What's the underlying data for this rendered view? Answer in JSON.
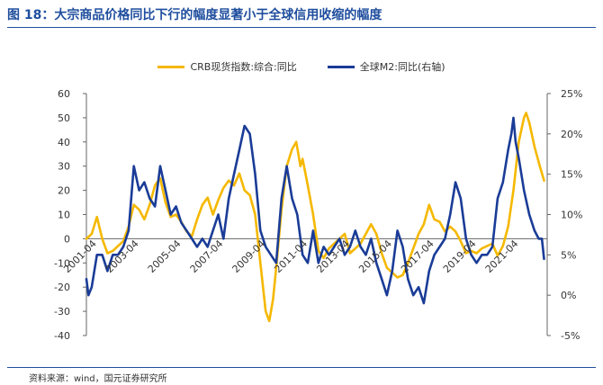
{
  "title": "图 18：大宗商品价格同比下行的幅度显著小于全球信用收缩的幅度",
  "source": "资料来源：wind，国元证券研究所",
  "colors": {
    "crb": "#f5b800",
    "m2": "#1a3c97",
    "title": "#1f4e9e"
  },
  "chart_data": {
    "type": "line",
    "x_tick_labels": [
      "2001-04",
      "2003-04",
      "2005-04",
      "2007-04",
      "2009-04",
      "2011-04",
      "2013-04",
      "2015-04",
      "2017-04",
      "2019-04",
      "2021-04"
    ],
    "x_range": [
      2000.75,
      2022.6
    ],
    "y_left": {
      "range": [
        -40,
        60
      ],
      "ticks": [
        60,
        50,
        40,
        30,
        20,
        10,
        0,
        -10,
        -20,
        -30,
        -40
      ],
      "tick_labels": [
        "60",
        "50",
        "40",
        "30",
        "20",
        "10",
        "0",
        "-10",
        "-20",
        "-30",
        "-40"
      ]
    },
    "y_right": {
      "range": [
        -5,
        25
      ],
      "ticks": [
        25,
        20,
        15,
        10,
        5,
        0,
        -5
      ],
      "tick_labels": [
        "25%",
        "20%",
        "15%",
        "10%",
        "5%",
        "0%",
        "-5%"
      ]
    },
    "series": [
      {
        "name": "CRB现货指数:综合:同比",
        "axis": "left",
        "color": "#f5b800",
        "points": [
          [
            2000.75,
            0
          ],
          [
            2001.0,
            2
          ],
          [
            2001.25,
            9
          ],
          [
            2001.5,
            0
          ],
          [
            2001.75,
            -6
          ],
          [
            2002.0,
            -5
          ],
          [
            2002.25,
            -3
          ],
          [
            2002.5,
            -1
          ],
          [
            2002.75,
            5
          ],
          [
            2003.0,
            14
          ],
          [
            2003.25,
            12
          ],
          [
            2003.5,
            8
          ],
          [
            2003.75,
            14
          ],
          [
            2004.0,
            22
          ],
          [
            2004.25,
            25
          ],
          [
            2004.5,
            15
          ],
          [
            2004.75,
            9
          ],
          [
            2005.0,
            10
          ],
          [
            2005.25,
            7
          ],
          [
            2005.5,
            3
          ],
          [
            2005.75,
            1
          ],
          [
            2006.0,
            8
          ],
          [
            2006.25,
            14
          ],
          [
            2006.5,
            17
          ],
          [
            2006.75,
            10
          ],
          [
            2007.0,
            16
          ],
          [
            2007.25,
            21
          ],
          [
            2007.5,
            24
          ],
          [
            2007.75,
            22
          ],
          [
            2008.0,
            27
          ],
          [
            2008.25,
            20
          ],
          [
            2008.5,
            18
          ],
          [
            2008.75,
            10
          ],
          [
            2009.0,
            -10
          ],
          [
            2009.25,
            -30
          ],
          [
            2009.42,
            -34
          ],
          [
            2009.6,
            -25
          ],
          [
            2009.75,
            -12
          ],
          [
            2010.0,
            12
          ],
          [
            2010.25,
            30
          ],
          [
            2010.5,
            37
          ],
          [
            2010.7,
            40
          ],
          [
            2010.9,
            30
          ],
          [
            2011.0,
            33
          ],
          [
            2011.25,
            22
          ],
          [
            2011.5,
            10
          ],
          [
            2011.75,
            -5
          ],
          [
            2012.0,
            -8
          ],
          [
            2012.25,
            -4
          ],
          [
            2012.5,
            -2
          ],
          [
            2012.75,
            0
          ],
          [
            2013.0,
            2
          ],
          [
            2013.25,
            -6
          ],
          [
            2013.5,
            -4
          ],
          [
            2013.75,
            -2
          ],
          [
            2014.0,
            2
          ],
          [
            2014.25,
            6
          ],
          [
            2014.5,
            2
          ],
          [
            2014.75,
            -6
          ],
          [
            2015.0,
            -12
          ],
          [
            2015.25,
            -14
          ],
          [
            2015.5,
            -16
          ],
          [
            2015.75,
            -15
          ],
          [
            2016.0,
            -10
          ],
          [
            2016.25,
            -4
          ],
          [
            2016.5,
            2
          ],
          [
            2016.75,
            6
          ],
          [
            2017.0,
            14
          ],
          [
            2017.25,
            8
          ],
          [
            2017.5,
            7
          ],
          [
            2017.75,
            3
          ],
          [
            2018.0,
            5
          ],
          [
            2018.25,
            3
          ],
          [
            2018.5,
            -1
          ],
          [
            2018.75,
            -6
          ],
          [
            2019.0,
            -5
          ],
          [
            2019.25,
            -6
          ],
          [
            2019.5,
            -4
          ],
          [
            2019.75,
            -3
          ],
          [
            2020.0,
            -2
          ],
          [
            2020.25,
            -7
          ],
          [
            2020.5,
            -3
          ],
          [
            2020.75,
            5
          ],
          [
            2021.0,
            20
          ],
          [
            2021.25,
            40
          ],
          [
            2021.5,
            50
          ],
          [
            2021.6,
            52
          ],
          [
            2021.75,
            48
          ],
          [
            2022.0,
            38
          ],
          [
            2022.25,
            30
          ],
          [
            2022.45,
            24
          ]
        ]
      },
      {
        "name": "全球M2:同比(右轴)",
        "axis": "right",
        "color": "#1a3c97",
        "points": [
          [
            2000.75,
            2
          ],
          [
            2000.85,
            0
          ],
          [
            2001.0,
            1
          ],
          [
            2001.25,
            5
          ],
          [
            2001.5,
            5
          ],
          [
            2001.75,
            3
          ],
          [
            2002.0,
            5
          ],
          [
            2002.25,
            5
          ],
          [
            2002.5,
            6
          ],
          [
            2002.75,
            8
          ],
          [
            2003.0,
            16
          ],
          [
            2003.25,
            13
          ],
          [
            2003.5,
            14
          ],
          [
            2003.75,
            12
          ],
          [
            2004.0,
            11
          ],
          [
            2004.25,
            16
          ],
          [
            2004.5,
            13
          ],
          [
            2004.75,
            10
          ],
          [
            2005.0,
            11
          ],
          [
            2005.25,
            9
          ],
          [
            2005.5,
            8
          ],
          [
            2005.75,
            7
          ],
          [
            2006.0,
            6
          ],
          [
            2006.25,
            7
          ],
          [
            2006.5,
            6
          ],
          [
            2006.75,
            8
          ],
          [
            2007.0,
            10
          ],
          [
            2007.25,
            7
          ],
          [
            2007.5,
            12
          ],
          [
            2007.75,
            15
          ],
          [
            2008.0,
            18
          ],
          [
            2008.25,
            21
          ],
          [
            2008.5,
            20
          ],
          [
            2008.75,
            15
          ],
          [
            2009.0,
            8
          ],
          [
            2009.25,
            6
          ],
          [
            2009.5,
            5
          ],
          [
            2009.75,
            4
          ],
          [
            2010.0,
            12
          ],
          [
            2010.25,
            16
          ],
          [
            2010.5,
            12
          ],
          [
            2010.75,
            10
          ],
          [
            2011.0,
            5
          ],
          [
            2011.25,
            4
          ],
          [
            2011.5,
            8
          ],
          [
            2011.75,
            4
          ],
          [
            2012.0,
            6
          ],
          [
            2012.25,
            5
          ],
          [
            2012.5,
            6
          ],
          [
            2012.75,
            7
          ],
          [
            2013.0,
            5
          ],
          [
            2013.25,
            6
          ],
          [
            2013.5,
            8
          ],
          [
            2013.75,
            6
          ],
          [
            2014.0,
            5
          ],
          [
            2014.25,
            7
          ],
          [
            2014.5,
            4
          ],
          [
            2014.75,
            2
          ],
          [
            2015.0,
            0
          ],
          [
            2015.25,
            3
          ],
          [
            2015.5,
            8
          ],
          [
            2015.75,
            6
          ],
          [
            2016.0,
            2
          ],
          [
            2016.25,
            0
          ],
          [
            2016.5,
            1
          ],
          [
            2016.75,
            -1
          ],
          [
            2017.0,
            3
          ],
          [
            2017.25,
            5
          ],
          [
            2017.5,
            6
          ],
          [
            2017.75,
            7
          ],
          [
            2018.0,
            10
          ],
          [
            2018.25,
            14
          ],
          [
            2018.5,
            12
          ],
          [
            2018.75,
            7
          ],
          [
            2019.0,
            5
          ],
          [
            2019.25,
            4
          ],
          [
            2019.5,
            5
          ],
          [
            2019.75,
            5
          ],
          [
            2020.0,
            6
          ],
          [
            2020.25,
            12
          ],
          [
            2020.5,
            14
          ],
          [
            2020.75,
            18
          ],
          [
            2020.9,
            20
          ],
          [
            2021.0,
            22
          ],
          [
            2021.1,
            19
          ],
          [
            2021.25,
            17
          ],
          [
            2021.5,
            13
          ],
          [
            2021.75,
            10
          ],
          [
            2022.0,
            8
          ],
          [
            2022.2,
            7
          ],
          [
            2022.35,
            7
          ],
          [
            2022.45,
            4.5
          ]
        ]
      }
    ]
  }
}
